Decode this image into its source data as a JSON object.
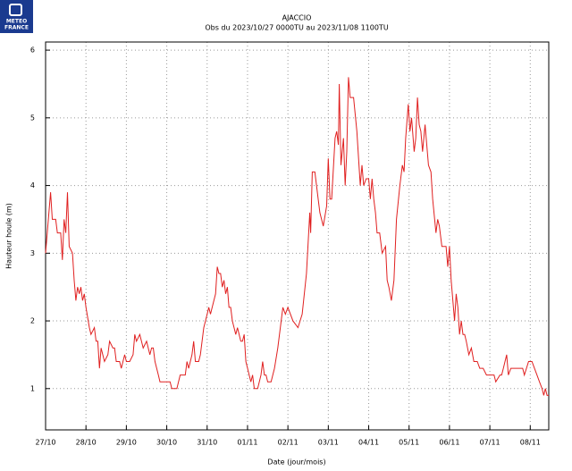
{
  "logo": {
    "line1": "METEO",
    "line2": "FRANCE"
  },
  "chart_data": {
    "type": "line",
    "title": "AJACCIO",
    "subtitle": "Obs du 2023/10/27 0000TU au 2023/11/08 1100TU",
    "x_label": "Date (jour/mois)",
    "y_label": "Hauteur houle (m)",
    "x": [
      0,
      3,
      4,
      6,
      7,
      9,
      10,
      11,
      12,
      13,
      14,
      16,
      17,
      18,
      19,
      20,
      21,
      22,
      23,
      24,
      26,
      27,
      29,
      30,
      31,
      32,
      33,
      35,
      37,
      38,
      40,
      41,
      42,
      44,
      45,
      47,
      48,
      50,
      52,
      53,
      54,
      56,
      58,
      60,
      62,
      63,
      64,
      65,
      67,
      68,
      72,
      74,
      75,
      78,
      80,
      83,
      84,
      85,
      87,
      88,
      89,
      91,
      92,
      94,
      96,
      97,
      98,
      99,
      101,
      102,
      103,
      104,
      105,
      106,
      107,
      108,
      109,
      110,
      111,
      112,
      113,
      114,
      116,
      117,
      118,
      119,
      120,
      121,
      122,
      123,
      124,
      126,
      128,
      129,
      130,
      131,
      132,
      134,
      136,
      138,
      141,
      142.5,
      144,
      147,
      150,
      152.5,
      155,
      157,
      157.5,
      158.5,
      160,
      162,
      163,
      165,
      167,
      168,
      169,
      170,
      172,
      173,
      174,
      174.5,
      175.5,
      177,
      178,
      179,
      180,
      181,
      183,
      185,
      186,
      187,
      188,
      189,
      190.5,
      192,
      193,
      194,
      195,
      196,
      197,
      198.5,
      200,
      202,
      203,
      204,
      205.5,
      207,
      208.5,
      210.5,
      212,
      213,
      214,
      215.5,
      216.5,
      217.5,
      219,
      220,
      221,
      222,
      223,
      224,
      225.5,
      226.5,
      227.5,
      229,
      230,
      232,
      233,
      234,
      235.5,
      238,
      239,
      240,
      241,
      243,
      244,
      245,
      246,
      247,
      248,
      249,
      250,
      251.5,
      253,
      254.5,
      256.5,
      258,
      260,
      262,
      266.5,
      267.5,
      270,
      271,
      272,
      274,
      275,
      276.5,
      283.5,
      284.5,
      287,
      289,
      290.5,
      292,
      293.5,
      295,
      296,
      297,
      298,
      299
    ],
    "series": [
      {
        "name": "Hauteur houle",
        "color": "#e02020",
        "values": [
          3.0,
          3.9,
          3.5,
          3.5,
          3.3,
          3.3,
          2.9,
          3.5,
          3.3,
          3.9,
          3.1,
          3.0,
          2.6,
          2.3,
          2.5,
          2.4,
          2.5,
          2.3,
          2.4,
          2.2,
          1.9,
          1.8,
          1.9,
          1.7,
          1.7,
          1.3,
          1.6,
          1.4,
          1.5,
          1.7,
          1.6,
          1.6,
          1.4,
          1.4,
          1.3,
          1.5,
          1.4,
          1.4,
          1.5,
          1.8,
          1.7,
          1.8,
          1.6,
          1.7,
          1.5,
          1.6,
          1.6,
          1.4,
          1.2,
          1.1,
          1.1,
          1.1,
          1.0,
          1.0,
          1.2,
          1.2,
          1.4,
          1.3,
          1.5,
          1.7,
          1.4,
          1.4,
          1.5,
          1.9,
          2.1,
          2.2,
          2.1,
          2.2,
          2.4,
          2.8,
          2.7,
          2.7,
          2.5,
          2.6,
          2.4,
          2.5,
          2.2,
          2.2,
          2.0,
          1.9,
          1.8,
          1.9,
          1.7,
          1.7,
          1.8,
          1.4,
          1.3,
          1.2,
          1.1,
          1.2,
          1.0,
          1.0,
          1.2,
          1.4,
          1.2,
          1.2,
          1.1,
          1.1,
          1.3,
          1.6,
          2.2,
          2.1,
          2.2,
          2.0,
          1.9,
          2.1,
          2.7,
          3.6,
          3.3,
          4.2,
          4.2,
          3.8,
          3.6,
          3.4,
          3.7,
          4.4,
          3.8,
          3.8,
          4.7,
          4.8,
          4.6,
          5.5,
          4.3,
          4.7,
          4.0,
          4.5,
          5.6,
          5.3,
          5.3,
          4.8,
          4.4,
          4.0,
          4.3,
          4.0,
          4.1,
          4.1,
          3.8,
          4.1,
          3.8,
          3.6,
          3.3,
          3.3,
          3.0,
          3.1,
          2.6,
          2.5,
          2.3,
          2.6,
          3.5,
          4.0,
          4.3,
          4.2,
          4.7,
          5.2,
          4.8,
          5.0,
          4.5,
          4.7,
          5.3,
          4.9,
          4.8,
          4.5,
          4.9,
          4.6,
          4.3,
          4.2,
          3.8,
          3.3,
          3.5,
          3.4,
          3.1,
          3.1,
          2.8,
          3.1,
          2.6,
          2.0,
          2.4,
          2.2,
          1.8,
          2.0,
          1.8,
          1.8,
          1.7,
          1.5,
          1.6,
          1.4,
          1.4,
          1.3,
          1.3,
          1.2,
          1.2,
          1.1,
          1.2,
          1.2,
          1.3,
          1.5,
          1.2,
          1.3,
          1.3,
          1.2,
          1.4,
          1.4,
          1.3,
          1.2,
          1.1,
          1.0,
          0.9,
          1.0,
          0.9,
          0.9
        ]
      }
    ],
    "xlim": [
      0,
      299
    ],
    "xticks": [
      {
        "value": 0,
        "label": "27/10"
      },
      {
        "value": 24,
        "label": "28/10"
      },
      {
        "value": 48,
        "label": "29/10"
      },
      {
        "value": 72,
        "label": "30/10"
      },
      {
        "value": 96,
        "label": "31/10"
      },
      {
        "value": 120,
        "label": "01/11"
      },
      {
        "value": 144,
        "label": "02/11"
      },
      {
        "value": 168,
        "label": "03/11"
      },
      {
        "value": 192,
        "label": "04/11"
      },
      {
        "value": 216,
        "label": "05/11"
      },
      {
        "value": 240,
        "label": "06/11"
      },
      {
        "value": 264,
        "label": "07/11"
      },
      {
        "value": 288,
        "label": "08/11"
      }
    ],
    "ylim": [
      0.39,
      6.12
    ],
    "yticks": [
      1,
      2,
      3,
      4,
      5,
      6
    ],
    "grid": true
  }
}
